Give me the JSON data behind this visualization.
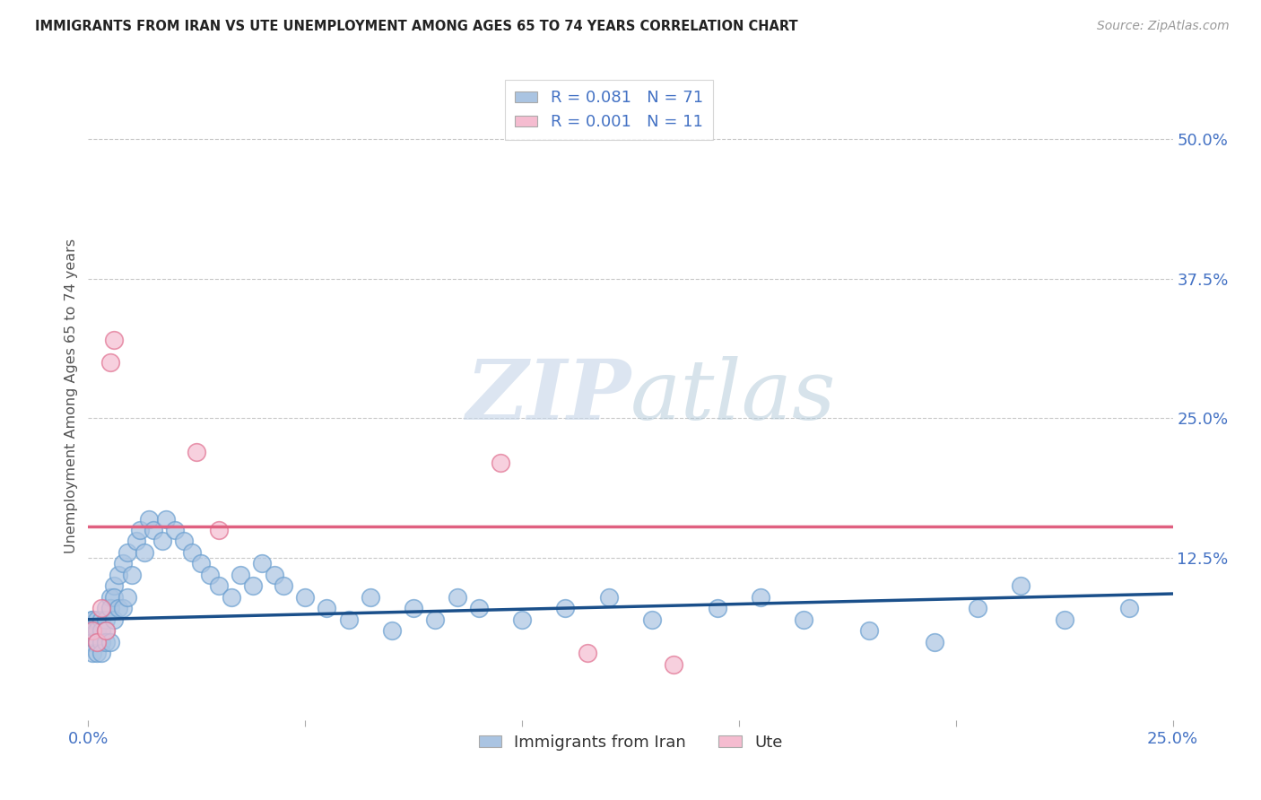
{
  "title": "IMMIGRANTS FROM IRAN VS UTE UNEMPLOYMENT AMONG AGES 65 TO 74 YEARS CORRELATION CHART",
  "source": "Source: ZipAtlas.com",
  "ylabel": "Unemployment Among Ages 65 to 74 years",
  "watermark": "ZIPatlas",
  "iran_R": "0.081",
  "iran_N": 71,
  "ute_R": "0.001",
  "ute_N": 11,
  "xlim": [
    0.0,
    0.25
  ],
  "ylim": [
    -0.02,
    0.56
  ],
  "yticks_right": [
    0.125,
    0.25,
    0.375,
    0.5
  ],
  "ytick_right_labels": [
    "12.5%",
    "25.0%",
    "37.5%",
    "50.0%"
  ],
  "iran_color": "#aac4e2",
  "iran_edge": "#6a9fd0",
  "ute_color": "#f5bcd0",
  "ute_edge": "#e07090",
  "trend_iran_color": "#1a4f8a",
  "trend_ute_color": "#e06080",
  "legend_text_color": "#4472c4",
  "background_color": "#ffffff",
  "iran_x": [
    0.001,
    0.001,
    0.001,
    0.001,
    0.001,
    0.002,
    0.002,
    0.002,
    0.002,
    0.003,
    0.003,
    0.003,
    0.003,
    0.004,
    0.004,
    0.004,
    0.004,
    0.005,
    0.005,
    0.005,
    0.006,
    0.006,
    0.006,
    0.007,
    0.007,
    0.008,
    0.008,
    0.009,
    0.009,
    0.01,
    0.011,
    0.012,
    0.013,
    0.014,
    0.015,
    0.017,
    0.018,
    0.02,
    0.022,
    0.024,
    0.026,
    0.028,
    0.03,
    0.033,
    0.035,
    0.038,
    0.04,
    0.043,
    0.045,
    0.05,
    0.055,
    0.06,
    0.065,
    0.07,
    0.075,
    0.08,
    0.085,
    0.09,
    0.1,
    0.11,
    0.12,
    0.13,
    0.145,
    0.155,
    0.165,
    0.18,
    0.195,
    0.205,
    0.215,
    0.225,
    0.24
  ],
  "iran_y": [
    0.07,
    0.07,
    0.06,
    0.05,
    0.04,
    0.07,
    0.06,
    0.05,
    0.04,
    0.07,
    0.06,
    0.05,
    0.04,
    0.08,
    0.07,
    0.06,
    0.05,
    0.09,
    0.08,
    0.05,
    0.1,
    0.09,
    0.07,
    0.11,
    0.08,
    0.12,
    0.08,
    0.13,
    0.09,
    0.11,
    0.14,
    0.15,
    0.13,
    0.16,
    0.15,
    0.14,
    0.16,
    0.15,
    0.14,
    0.13,
    0.12,
    0.11,
    0.1,
    0.09,
    0.11,
    0.1,
    0.12,
    0.11,
    0.1,
    0.09,
    0.08,
    0.07,
    0.09,
    0.06,
    0.08,
    0.07,
    0.09,
    0.08,
    0.07,
    0.08,
    0.09,
    0.07,
    0.08,
    0.09,
    0.07,
    0.06,
    0.05,
    0.08,
    0.1,
    0.07,
    0.08
  ],
  "ute_x": [
    0.001,
    0.002,
    0.003,
    0.004,
    0.005,
    0.006,
    0.025,
    0.03,
    0.095,
    0.115,
    0.135
  ],
  "ute_y": [
    0.06,
    0.05,
    0.08,
    0.06,
    0.3,
    0.32,
    0.22,
    0.15,
    0.21,
    0.04,
    0.03
  ],
  "iran_trend_y0": 0.07,
  "iran_trend_y1": 0.093,
  "ute_trend_y": 0.153
}
